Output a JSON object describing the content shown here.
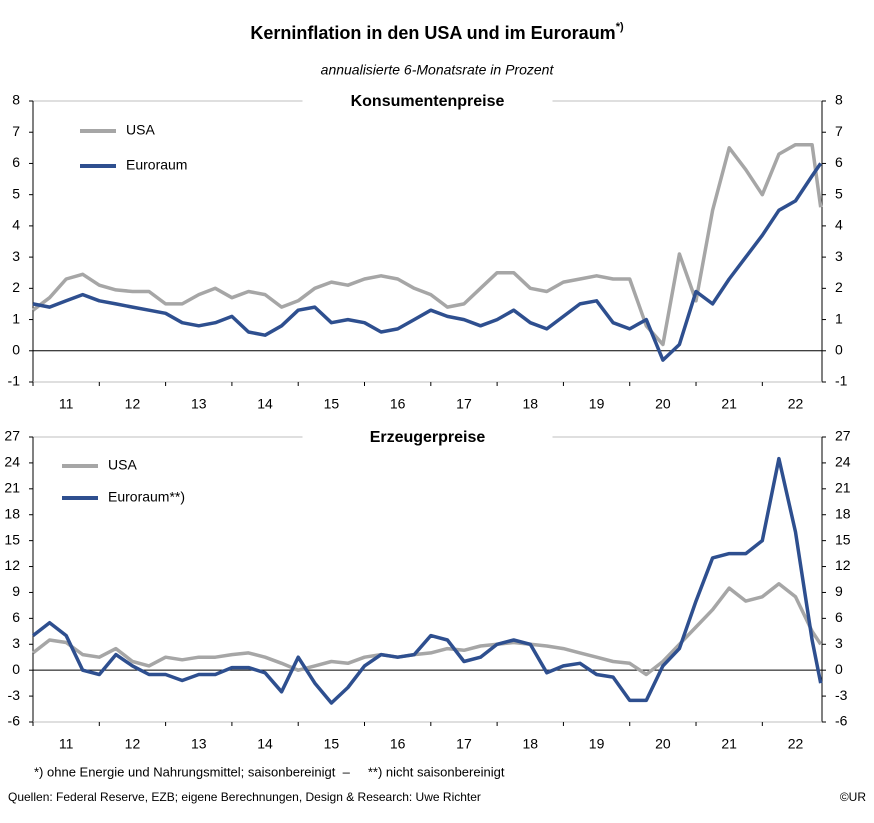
{
  "title": "Kerninflation in den USA und im Euroraum",
  "title_note": "*)",
  "subtitle": "annualisierte 6-Monatsrate in Prozent",
  "footnote": "*) ohne Energie und Nahrungsmittel; saisonbereinigt  –     **) nicht saisonbereinigt",
  "source": "Quellen: Federal Reserve, EZB; eigene Berechnungen, Design & Research: Uwe Richter",
  "copyright": "©UR",
  "chart_data": [
    {
      "type": "line",
      "title": "Konsumentenpreise",
      "legend": "upper left",
      "x": [
        11,
        11.25,
        11.5,
        11.75,
        12,
        12.25,
        12.5,
        12.75,
        13,
        13.25,
        13.5,
        13.75,
        14,
        14.25,
        14.5,
        14.75,
        15,
        15.25,
        15.5,
        15.75,
        16,
        16.25,
        16.5,
        16.75,
        17,
        17.25,
        17.5,
        17.75,
        18,
        18.25,
        18.5,
        18.75,
        19,
        19.25,
        19.5,
        19.75,
        20,
        20.25,
        20.5,
        20.75,
        21,
        21.25,
        21.5,
        21.75,
        22,
        22.25,
        22.5,
        22.75,
        22.88
      ],
      "xlim": [
        11,
        22.9
      ],
      "xticks": [
        11,
        12,
        13,
        14,
        15,
        16,
        17,
        18,
        19,
        20,
        21,
        22
      ],
      "ylim": [
        -1,
        8
      ],
      "yticks": [
        -1,
        0,
        1,
        2,
        3,
        4,
        5,
        6,
        7,
        8
      ],
      "series": [
        {
          "name": "USA",
          "color": "#a6a6a6",
          "values": [
            1.3,
            1.7,
            2.3,
            2.45,
            2.1,
            1.95,
            1.9,
            1.9,
            1.5,
            1.5,
            1.8,
            2.0,
            1.7,
            1.9,
            1.8,
            1.4,
            1.6,
            2.0,
            2.2,
            2.1,
            2.3,
            2.4,
            2.3,
            2.0,
            1.8,
            1.4,
            1.5,
            2.0,
            2.5,
            2.5,
            2.0,
            1.9,
            2.2,
            2.3,
            2.4,
            2.3,
            2.3,
            0.8,
            0.2,
            3.1,
            1.6,
            4.5,
            6.5,
            5.8,
            5.0,
            6.3,
            6.6,
            6.6,
            4.6
          ]
        },
        {
          "name": "Euroraum",
          "color": "#2e4f8f",
          "values": [
            1.5,
            1.4,
            1.6,
            1.8,
            1.6,
            1.5,
            1.4,
            1.3,
            1.2,
            0.9,
            0.8,
            0.9,
            1.1,
            0.6,
            0.5,
            0.8,
            1.3,
            1.4,
            0.9,
            1.0,
            0.9,
            0.6,
            0.7,
            1.0,
            1.3,
            1.1,
            1.0,
            0.8,
            1.0,
            1.3,
            0.9,
            0.7,
            1.1,
            1.5,
            1.6,
            0.9,
            0.7,
            1.0,
            -0.3,
            0.2,
            1.9,
            1.5,
            2.3,
            3.0,
            3.7,
            4.5,
            4.8,
            5.6,
            6.0
          ]
        }
      ]
    },
    {
      "type": "line",
      "title": "Erzeugerpreise",
      "legend": "upper left",
      "x": [
        11,
        11.25,
        11.5,
        11.75,
        12,
        12.25,
        12.5,
        12.75,
        13,
        13.25,
        13.5,
        13.75,
        14,
        14.25,
        14.5,
        14.75,
        15,
        15.25,
        15.5,
        15.75,
        16,
        16.25,
        16.5,
        16.75,
        17,
        17.25,
        17.5,
        17.75,
        18,
        18.25,
        18.5,
        18.75,
        19,
        19.25,
        19.5,
        19.75,
        20,
        20.25,
        20.5,
        20.75,
        21,
        21.25,
        21.5,
        21.75,
        22,
        22.25,
        22.5,
        22.75,
        22.88
      ],
      "xlim": [
        11,
        22.9
      ],
      "xticks": [
        11,
        12,
        13,
        14,
        15,
        16,
        17,
        18,
        19,
        20,
        21,
        22
      ],
      "ylim": [
        -6,
        27
      ],
      "yticks": [
        -6,
        -3,
        0,
        3,
        6,
        9,
        12,
        15,
        18,
        21,
        24,
        27
      ],
      "series": [
        {
          "name": "USA",
          "color": "#a6a6a6",
          "values": [
            2.0,
            3.5,
            3.2,
            1.8,
            1.5,
            2.5,
            1.0,
            0.5,
            1.5,
            1.2,
            1.5,
            1.5,
            1.8,
            2.0,
            1.5,
            0.8,
            0.0,
            0.5,
            1.0,
            0.8,
            1.5,
            1.8,
            1.5,
            1.8,
            2.0,
            2.5,
            2.3,
            2.8,
            3.0,
            3.2,
            3.0,
            2.8,
            2.5,
            2.0,
            1.5,
            1.0,
            0.8,
            -0.5,
            1.0,
            3.0,
            5.0,
            7.0,
            9.5,
            8.0,
            8.5,
            10.0,
            8.5,
            4.5,
            3.0
          ]
        },
        {
          "name": "Euroraum**)",
          "color": "#2e4f8f",
          "values": [
            4.0,
            5.5,
            4.0,
            0.0,
            -0.5,
            1.8,
            0.5,
            -0.5,
            -0.5,
            -1.2,
            -0.5,
            -0.5,
            0.3,
            0.3,
            -0.3,
            -2.5,
            1.5,
            -1.5,
            -3.8,
            -2.0,
            0.5,
            1.8,
            1.5,
            1.8,
            4.0,
            3.5,
            1.0,
            1.5,
            3.0,
            3.5,
            3.0,
            -0.3,
            0.5,
            0.8,
            -0.5,
            -0.8,
            -3.5,
            -3.5,
            0.5,
            2.5,
            8.0,
            13.0,
            13.5,
            13.5,
            15.0,
            24.5,
            16.0,
            3.5,
            -1.5
          ]
        }
      ]
    }
  ]
}
